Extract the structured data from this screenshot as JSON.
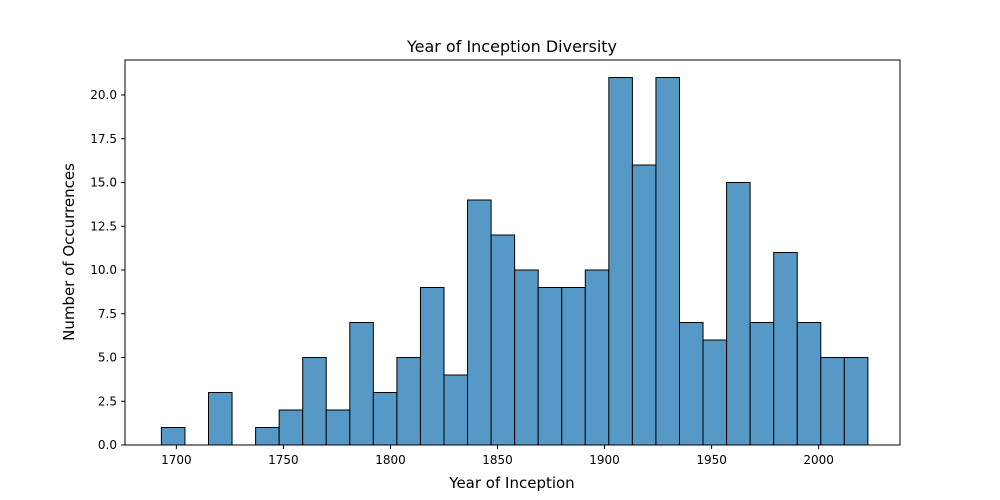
{
  "chart_data": {
    "type": "bar",
    "title": "Year of Inception Diversity",
    "xlabel": "Year of Inception",
    "ylabel": "Number of Occurrences",
    "bin_start": 1693,
    "bin_width": 11,
    "values": [
      1,
      0,
      3,
      0,
      1,
      2,
      5,
      2,
      7,
      3,
      5,
      9,
      4,
      14,
      12,
      10,
      9,
      9,
      10,
      21,
      16,
      21,
      7,
      6,
      15,
      7,
      11,
      7,
      5,
      5
    ],
    "xlim": [
      1676,
      2038
    ],
    "ylim": [
      0,
      22
    ],
    "xticks": [
      1700,
      1750,
      1800,
      1850,
      1900,
      1950,
      2000
    ],
    "xtick_labels": [
      "1700",
      "1750",
      "1800",
      "1850",
      "1900",
      "1950",
      "2000"
    ],
    "yticks": [
      0,
      2.5,
      5,
      7.5,
      10,
      12.5,
      15,
      17.5,
      20
    ],
    "ytick_labels": [
      "0.0",
      "2.5",
      "5.0",
      "7.5",
      "10.0",
      "12.5",
      "15.0",
      "17.5",
      "20.0"
    ],
    "bar_color": "#5799c6",
    "edge_color": "#000000",
    "grid": false
  }
}
